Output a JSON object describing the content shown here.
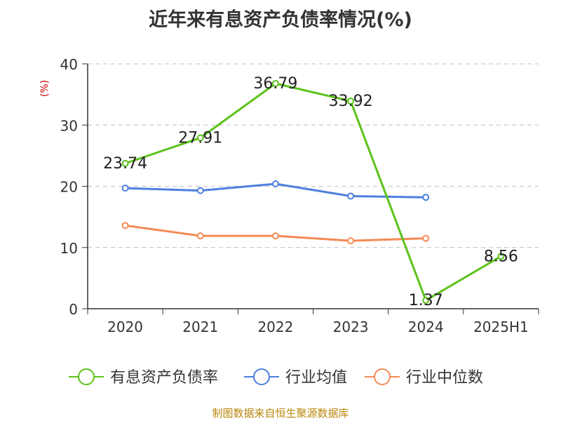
{
  "title": "近年来有息资产负债率情况(%)",
  "source_note": "制图数据来自恒生聚源数据库",
  "chart_data": {
    "type": "line",
    "title": "近年来有息资产负债率情况(%)",
    "xlabel": "",
    "ylabel": "(%)",
    "categories": [
      "2020",
      "2021",
      "2022",
      "2023",
      "2024",
      "2025H1"
    ],
    "ylim": [
      0,
      40
    ],
    "yticks": [
      "0",
      "10",
      "20",
      "30",
      "40"
    ],
    "grid": true,
    "legend_position": "bottom",
    "series": [
      {
        "name": "有息资产负债率",
        "color": "#5cc21a",
        "labels": true,
        "values": [
          23.74,
          27.91,
          36.79,
          33.92,
          1.37,
          8.56
        ]
      },
      {
        "name": "行业均值",
        "color": "#4e7fdf",
        "labels": false,
        "values": [
          19.7,
          19.3,
          20.4,
          18.4,
          18.2,
          null
        ]
      },
      {
        "name": "行业中位数",
        "color": "#f58a55",
        "labels": false,
        "values": [
          13.6,
          11.9,
          11.9,
          11.1,
          11.5,
          null
        ]
      }
    ]
  }
}
